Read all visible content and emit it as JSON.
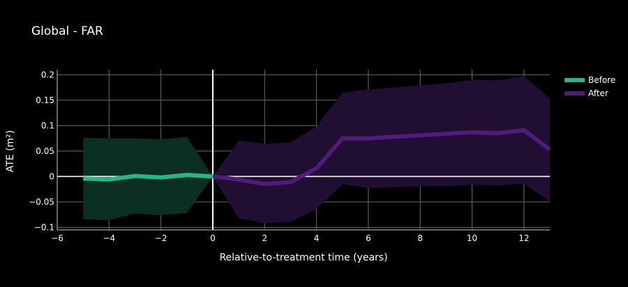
{
  "chart_data": {
    "type": "line",
    "title": "Global - FAR",
    "xlabel": "Relative-to-treatment time (years)",
    "ylabel": "ATE (m²)",
    "xlim": [
      -6,
      13
    ],
    "ylim": [
      -0.105,
      0.21
    ],
    "x_ticks": [
      -6,
      -4,
      -2,
      0,
      2,
      4,
      6,
      8,
      10,
      12
    ],
    "x_tick_labels": [
      "−6",
      "−4",
      "−2",
      "0",
      "2",
      "4",
      "6",
      "8",
      "10",
      "12"
    ],
    "y_ticks": [
      -0.1,
      -0.05,
      0,
      0.05,
      0.1,
      0.15,
      0.2
    ],
    "y_tick_labels": [
      "−0.1",
      "−0.05",
      "0",
      "0.05",
      "0.1",
      "0.15",
      "0.2"
    ],
    "grid": true,
    "legend_position": "top-right",
    "series": [
      {
        "name": "Before",
        "color": "#2bb584",
        "band_color": "#0b2f25",
        "x": [
          -5,
          -4,
          -3,
          -2,
          -1,
          0
        ],
        "values": [
          -0.004,
          -0.006,
          0.001,
          -0.002,
          0.003,
          0.0
        ],
        "upper": [
          0.076,
          0.075,
          0.075,
          0.073,
          0.078,
          0.0
        ],
        "lower": [
          -0.084,
          -0.086,
          -0.073,
          -0.076,
          -0.072,
          0.0
        ]
      },
      {
        "name": "After",
        "color": "#4e1d7c",
        "band_color": "#210e33",
        "x": [
          0,
          1,
          2,
          3,
          4,
          5,
          6,
          7,
          8,
          9,
          10,
          11,
          12,
          13
        ],
        "values": [
          0.0,
          -0.006,
          -0.015,
          -0.011,
          0.016,
          0.075,
          0.075,
          0.078,
          0.081,
          0.084,
          0.087,
          0.085,
          0.091,
          0.053
        ],
        "upper": [
          0.0,
          0.071,
          0.064,
          0.067,
          0.098,
          0.165,
          0.171,
          0.175,
          0.179,
          0.183,
          0.19,
          0.189,
          0.197,
          0.154
        ],
        "lower": [
          0.0,
          -0.082,
          -0.092,
          -0.089,
          -0.064,
          -0.015,
          -0.023,
          -0.021,
          -0.019,
          -0.019,
          -0.016,
          -0.018,
          -0.014,
          -0.05
        ]
      }
    ],
    "reference_lines": [
      {
        "axis": "x",
        "value": 0,
        "color": "#ffffff"
      },
      {
        "axis": "y",
        "value": 0,
        "color": "#ffffff"
      }
    ]
  }
}
